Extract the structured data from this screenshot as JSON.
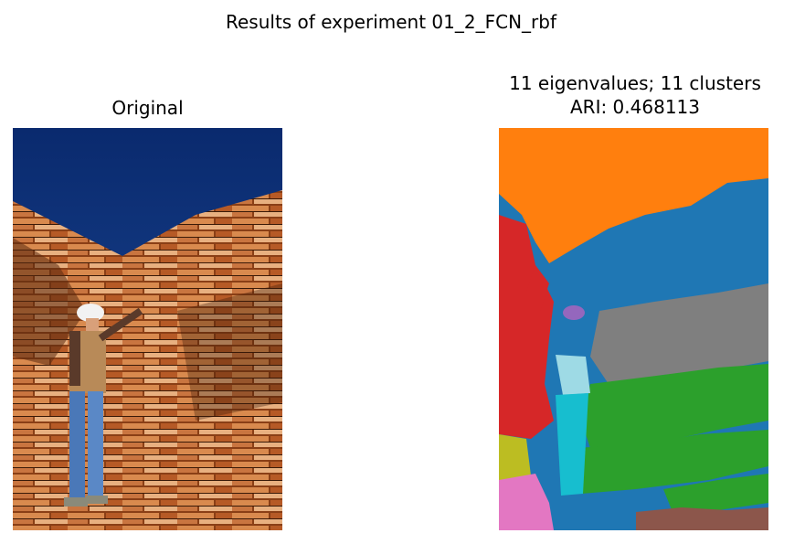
{
  "figure": {
    "title": "Results of experiment 01_2_FCN_rbf"
  },
  "panels": {
    "left": {
      "title": "Original"
    },
    "right": {
      "title_line1": "11 eigenvalues; 11 clusters",
      "title_line2": "ARI: 0.468113"
    }
  },
  "colors": {
    "sky": "#0c2a66",
    "wood_dark": "#5a2a10",
    "wood_mid": "#b35a24",
    "wood_light": "#e2a06a",
    "cluster_orange": "#ff7f0e",
    "cluster_blue": "#1f77b4",
    "cluster_red": "#d62728",
    "cluster_gray": "#7f7f7f",
    "cluster_green": "#2ca02c",
    "cluster_purple": "#9467bd",
    "cluster_cyan": "#17becf",
    "cluster_lightblue": "#9edae5",
    "cluster_olive": "#bcbd22",
    "cluster_pink": "#e377c2",
    "cluster_brown": "#8c564b"
  }
}
